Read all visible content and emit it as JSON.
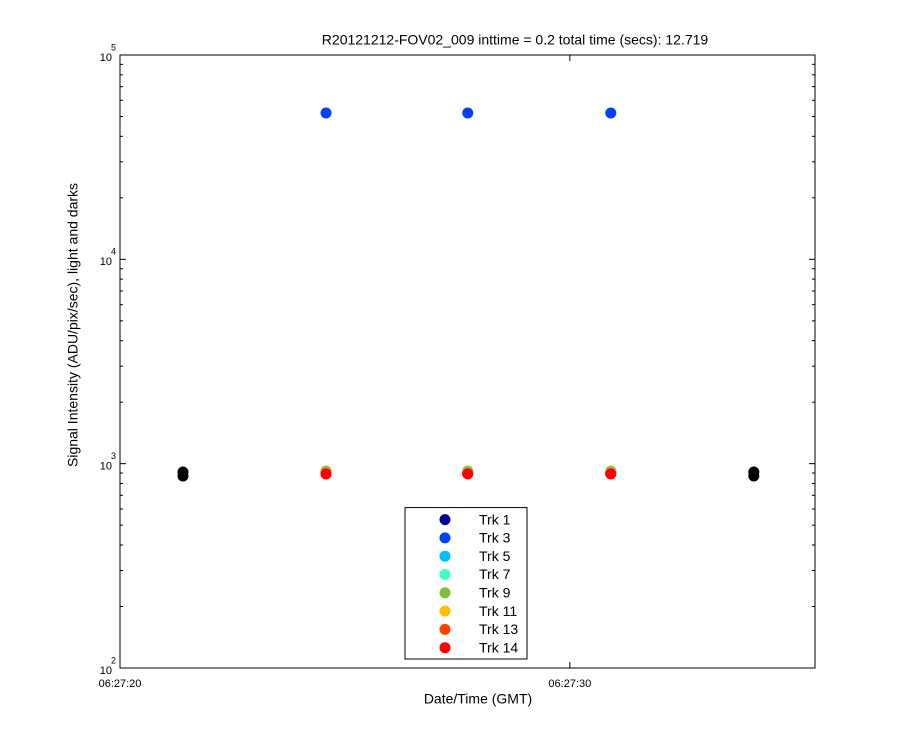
{
  "chart_data": {
    "type": "scatter",
    "title": "R20121212-FOV02_009 inttime = 0.2 total time (secs): 12.719",
    "xlabel": "Date/Time (GMT)",
    "ylabel": "Signal Intensity (ADU/pix/sec), light and darks",
    "log_y": true,
    "xlim": [
      0,
      15.45
    ],
    "xticks": [
      {
        "value": 0,
        "label": "06:27:20"
      },
      {
        "value": 10,
        "label": "06:27:30"
      }
    ],
    "ylim": [
      100,
      100000
    ],
    "yticks": [
      {
        "value": 100,
        "label": "10",
        "exponent": "2"
      },
      {
        "value": 1000,
        "label": "10",
        "exponent": "3"
      },
      {
        "value": 10000,
        "label": "10",
        "exponent": "4"
      },
      {
        "value": 100000,
        "label": "10",
        "exponent": "5"
      }
    ],
    "legend": "bottom-center",
    "series": [
      {
        "name": "Trk 1",
        "color": "#00008f",
        "x": [
          4.58,
          7.73,
          10.91
        ],
        "values": [
          900,
          900,
          900
        ]
      },
      {
        "name": "Trk 3",
        "color": "#0040ff",
        "x": [
          4.58,
          7.73,
          10.91
        ],
        "values": [
          52000,
          52000,
          52000
        ]
      },
      {
        "name": "Trk 5",
        "color": "#00bfff",
        "x": [
          4.58,
          7.73,
          10.91
        ],
        "values": [
          910,
          910,
          910
        ]
      },
      {
        "name": "Trk 7",
        "color": "#40ffbf",
        "x": [
          4.58,
          7.73,
          10.91
        ],
        "values": [
          915,
          915,
          915
        ]
      },
      {
        "name": "Trk 9",
        "color": "#7fbf3f",
        "x": [
          4.58,
          7.73,
          10.91
        ],
        "values": [
          920,
          920,
          920
        ]
      },
      {
        "name": "Trk 11",
        "color": "#ffbf00",
        "x": [
          4.58,
          7.73,
          10.91
        ],
        "values": [
          900,
          900,
          900
        ]
      },
      {
        "name": "Trk 13",
        "color": "#ff4000",
        "x": [
          4.58,
          7.73,
          10.91
        ],
        "values": [
          895,
          895,
          895
        ]
      },
      {
        "name": "Trk 14",
        "color": "#ff0000",
        "x": [
          4.58,
          7.73,
          10.91
        ],
        "values": [
          890,
          890,
          890
        ]
      },
      {
        "color": "#000000",
        "x": [
          1.4,
          1.4,
          14.09,
          14.09
        ],
        "values": [
          870,
          910,
          870,
          910
        ]
      }
    ]
  }
}
